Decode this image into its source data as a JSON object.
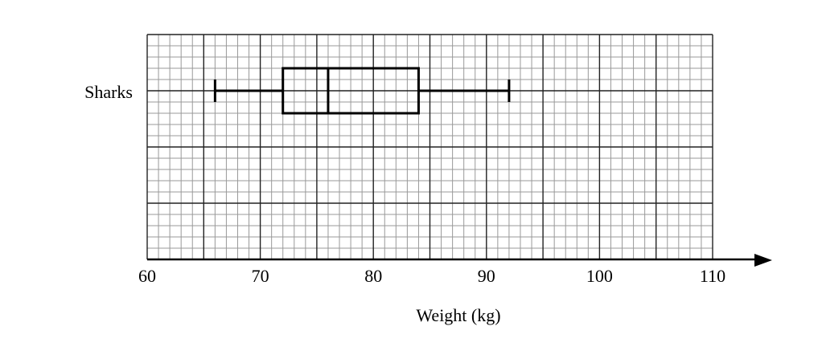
{
  "chart_data": {
    "type": "boxplot",
    "title": "",
    "xlabel": "Weight (kg)",
    "ylabel": "",
    "xlim": [
      60,
      110
    ],
    "x_ticks": [
      60,
      70,
      80,
      90,
      100,
      110
    ],
    "x_tick_labels": [
      "60",
      "70",
      "80",
      "90",
      "100",
      "110"
    ],
    "grid": {
      "minor_step": 1,
      "major_step": 5,
      "rows_minor": 20,
      "rows_major": 4
    },
    "series": [
      {
        "name": "Sharks",
        "min": 66,
        "q1": 72,
        "median": 76,
        "q3": 84,
        "max": 92
      }
    ]
  },
  "labels": {
    "series_label": "Sharks",
    "axis_title": "Weight (kg)"
  }
}
